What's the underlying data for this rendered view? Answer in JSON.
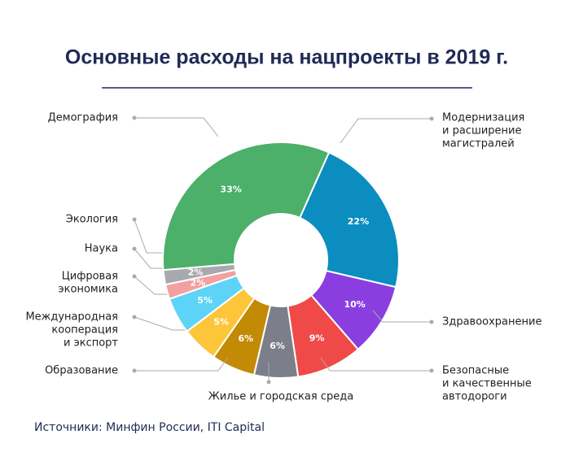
{
  "chart_data": {
    "type": "pie",
    "title": "Основные расходы на нацпроекты в 2019 г.",
    "source": "Источники: Минфин России, ITI Capital",
    "categories": [
      [
        "Модернизация",
        "и расширение",
        "магистралей"
      ],
      [
        "Здравоохранение"
      ],
      [
        "Безопасные",
        "и качественные",
        "автодороги"
      ],
      [
        "Жилье и городская среда"
      ],
      [
        "Образование"
      ],
      [
        "Международная",
        "кооперация",
        "и экспорт"
      ],
      [
        "Цифровая",
        "экономика"
      ],
      [
        "Наука"
      ],
      [
        "Экология"
      ],
      [
        "Демография"
      ]
    ],
    "values": [
      22,
      10,
      9,
      6,
      6,
      5,
      5,
      2,
      2,
      33
    ],
    "value_labels": [
      "22%",
      "10%",
      "9%",
      "6%",
      "6%",
      "5%",
      "5%",
      "2%",
      "2%",
      "33%"
    ],
    "colors": [
      "#0b8dc0",
      "#8a3ee0",
      "#ef4a47",
      "#7c7f8a",
      "#c38a06",
      "#fdc53a",
      "#5dd4f7",
      "#f2a0a0",
      "#a7a9ae",
      "#4caf6a"
    ]
  }
}
